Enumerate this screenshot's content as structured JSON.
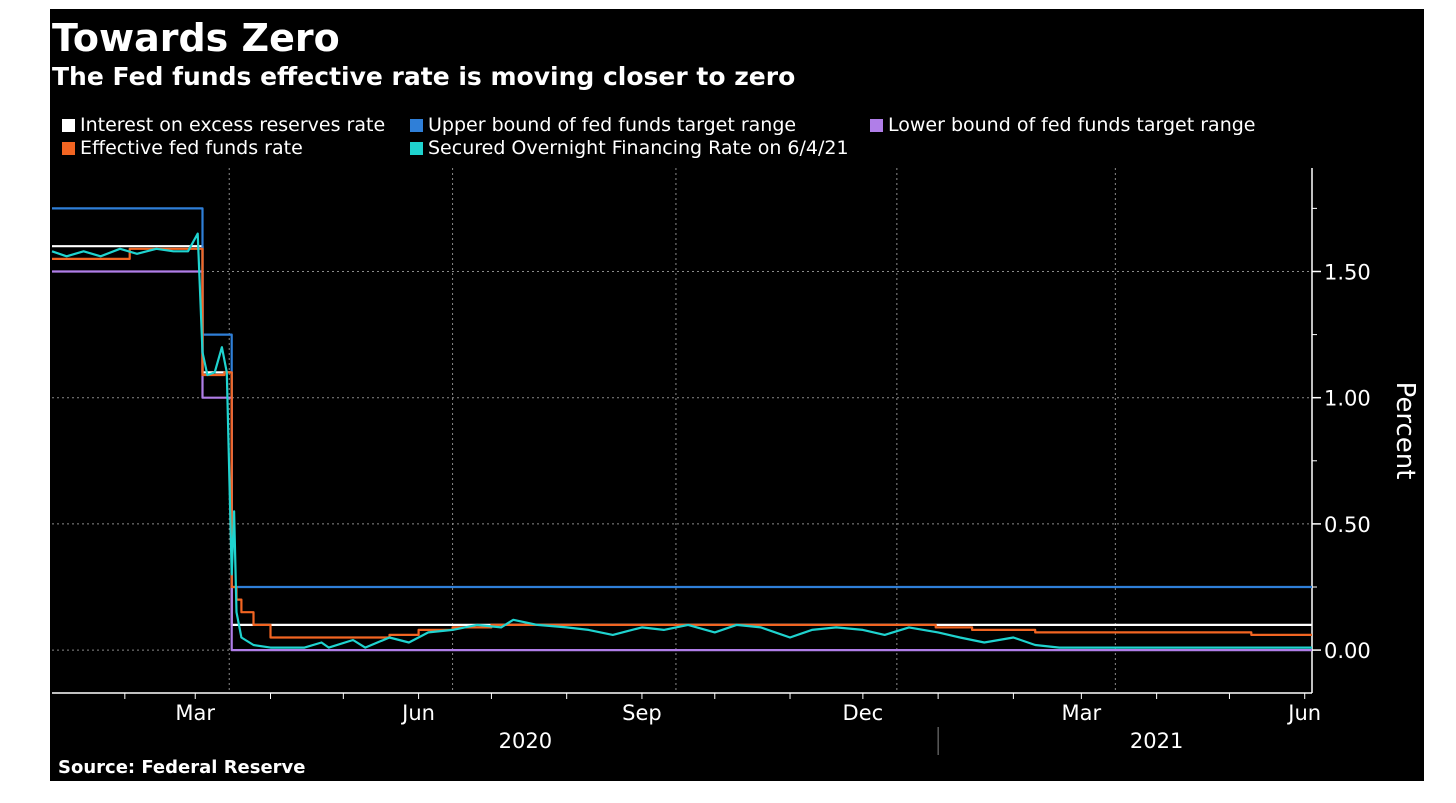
{
  "colors": {
    "background": "#000000",
    "ioer": "#ffffff",
    "upper": "#2f7fd8",
    "lower": "#b07ee8",
    "effective": "#f26522",
    "sofr": "#1fd3cf",
    "grid": "#8a8a8a"
  },
  "chart_data": {
    "type": "line",
    "title": "Towards Zero",
    "subtitle": "The Fed funds effective rate is moving closer to zero",
    "source": "Source: Federal Reserve",
    "ylabel": "Percent",
    "ylim": [
      -0.17,
      1.91
    ],
    "xlim": [
      "2020-01-02",
      "2021-06-04"
    ],
    "y_ticks": [
      {
        "value": 0.0,
        "label": "0.00"
      },
      {
        "value": 0.5,
        "label": "0.50"
      },
      {
        "value": 1.0,
        "label": "1.00"
      },
      {
        "value": 1.5,
        "label": "1.50"
      }
    ],
    "x_ticks": [
      {
        "date": "2020-03-01",
        "label": "Mar"
      },
      {
        "date": "2020-06-01",
        "label": "Jun"
      },
      {
        "date": "2020-09-01",
        "label": "Sep"
      },
      {
        "date": "2020-12-01",
        "label": "Dec"
      },
      {
        "date": "2021-03-01",
        "label": "Mar"
      },
      {
        "date": "2021-06-01",
        "label": "Jun"
      }
    ],
    "year_labels": [
      {
        "date": "2020-07-15",
        "label": "2020"
      },
      {
        "date": "2021-04-01",
        "label": "2021"
      }
    ],
    "year_divider": "2021-01-01",
    "grid": true,
    "legend_position": "top",
    "series": [
      {
        "name": "Interest on excess reserves rate",
        "color": "#ffffff",
        "step": true,
        "points": [
          [
            "2020-01-02",
            1.6
          ],
          [
            "2020-03-04",
            1.1
          ],
          [
            "2020-03-16",
            0.1
          ],
          [
            "2021-06-04",
            0.1
          ]
        ]
      },
      {
        "name": "Upper bound of fed funds target range",
        "color": "#2f7fd8",
        "step": true,
        "points": [
          [
            "2020-01-02",
            1.75
          ],
          [
            "2020-03-04",
            1.25
          ],
          [
            "2020-03-16",
            0.25
          ],
          [
            "2021-06-04",
            0.25
          ]
        ]
      },
      {
        "name": "Lower bound of fed funds target range",
        "color": "#b07ee8",
        "step": true,
        "points": [
          [
            "2020-01-02",
            1.5
          ],
          [
            "2020-03-04",
            1.0
          ],
          [
            "2020-03-16",
            0.0
          ],
          [
            "2021-06-04",
            0.0
          ]
        ]
      },
      {
        "name": "Effective fed funds rate",
        "color": "#f26522",
        "step": true,
        "points": [
          [
            "2020-01-02",
            1.55
          ],
          [
            "2020-01-03",
            1.55
          ],
          [
            "2020-01-06",
            1.55
          ],
          [
            "2020-02-03",
            1.59
          ],
          [
            "2020-03-03",
            1.59
          ],
          [
            "2020-03-04",
            1.09
          ],
          [
            "2020-03-13",
            1.1
          ],
          [
            "2020-03-16",
            0.25
          ],
          [
            "2020-03-18",
            0.2
          ],
          [
            "2020-03-20",
            0.15
          ],
          [
            "2020-03-25",
            0.1
          ],
          [
            "2020-04-01",
            0.05
          ],
          [
            "2020-05-01",
            0.05
          ],
          [
            "2020-05-15",
            0.05
          ],
          [
            "2020-05-20",
            0.06
          ],
          [
            "2020-06-01",
            0.08
          ],
          [
            "2020-06-15",
            0.09
          ],
          [
            "2020-07-01",
            0.1
          ],
          [
            "2020-12-31",
            0.09
          ],
          [
            "2021-01-15",
            0.08
          ],
          [
            "2021-02-01",
            0.08
          ],
          [
            "2021-02-10",
            0.07
          ],
          [
            "2021-05-01",
            0.07
          ],
          [
            "2021-05-10",
            0.06
          ],
          [
            "2021-06-04",
            0.06
          ]
        ]
      },
      {
        "name": "Secured Overnight Financing Rate on 6/4/21",
        "color": "#1fd3cf",
        "step": false,
        "points": [
          [
            "2020-01-02",
            1.58
          ],
          [
            "2020-01-08",
            1.56
          ],
          [
            "2020-01-15",
            1.58
          ],
          [
            "2020-01-22",
            1.56
          ],
          [
            "2020-01-30",
            1.59
          ],
          [
            "2020-02-06",
            1.57
          ],
          [
            "2020-02-14",
            1.59
          ],
          [
            "2020-02-21",
            1.58
          ],
          [
            "2020-02-27",
            1.58
          ],
          [
            "2020-03-02",
            1.65
          ],
          [
            "2020-03-04",
            1.18
          ],
          [
            "2020-03-06",
            1.09
          ],
          [
            "2020-03-09",
            1.1
          ],
          [
            "2020-03-12",
            1.2
          ],
          [
            "2020-03-14",
            1.1
          ],
          [
            "2020-03-16",
            0.3
          ],
          [
            "2020-03-17",
            0.55
          ],
          [
            "2020-03-18",
            0.15
          ],
          [
            "2020-03-20",
            0.05
          ],
          [
            "2020-03-25",
            0.02
          ],
          [
            "2020-04-01",
            0.01
          ],
          [
            "2020-04-15",
            0.01
          ],
          [
            "2020-04-22",
            0.03
          ],
          [
            "2020-04-25",
            0.01
          ],
          [
            "2020-05-05",
            0.04
          ],
          [
            "2020-05-10",
            0.01
          ],
          [
            "2020-05-20",
            0.05
          ],
          [
            "2020-05-28",
            0.03
          ],
          [
            "2020-06-05",
            0.07
          ],
          [
            "2020-06-15",
            0.08
          ],
          [
            "2020-06-25",
            0.1
          ],
          [
            "2020-07-05",
            0.09
          ],
          [
            "2020-07-10",
            0.12
          ],
          [
            "2020-07-20",
            0.1
          ],
          [
            "2020-08-01",
            0.09
          ],
          [
            "2020-08-10",
            0.08
          ],
          [
            "2020-08-20",
            0.06
          ],
          [
            "2020-09-01",
            0.09
          ],
          [
            "2020-09-10",
            0.08
          ],
          [
            "2020-09-20",
            0.1
          ],
          [
            "2020-10-01",
            0.07
          ],
          [
            "2020-10-10",
            0.1
          ],
          [
            "2020-10-20",
            0.09
          ],
          [
            "2020-11-01",
            0.05
          ],
          [
            "2020-11-10",
            0.08
          ],
          [
            "2020-11-20",
            0.09
          ],
          [
            "2020-12-01",
            0.08
          ],
          [
            "2020-12-10",
            0.06
          ],
          [
            "2020-12-20",
            0.09
          ],
          [
            "2021-01-01",
            0.07
          ],
          [
            "2021-01-10",
            0.05
          ],
          [
            "2021-01-20",
            0.03
          ],
          [
            "2021-02-01",
            0.05
          ],
          [
            "2021-02-10",
            0.02
          ],
          [
            "2021-02-20",
            0.01
          ],
          [
            "2021-03-01",
            0.01
          ],
          [
            "2021-04-01",
            0.01
          ],
          [
            "2021-05-01",
            0.01
          ],
          [
            "2021-06-04",
            0.01
          ]
        ]
      }
    ]
  }
}
